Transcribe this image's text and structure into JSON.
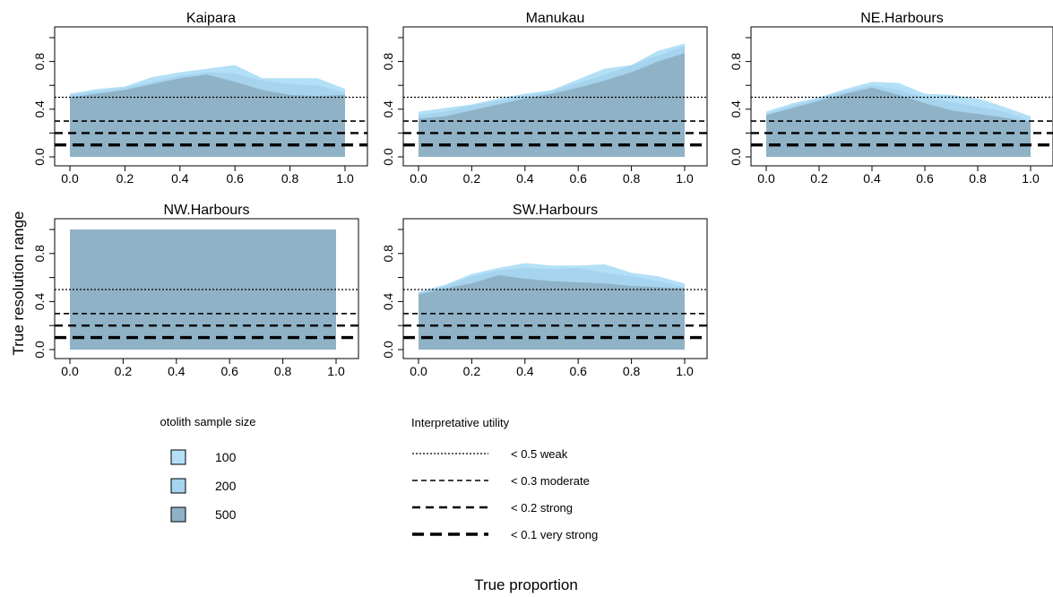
{
  "figure": {
    "y_axis_label": "True resolution range",
    "x_axis_label": "True proportion"
  },
  "chart_data": [
    {
      "type": "area",
      "title": "Kaipara",
      "x": [
        0,
        0.1,
        0.2,
        0.3,
        0.4,
        0.5,
        0.6,
        0.7,
        0.8,
        0.9,
        1.0
      ],
      "series": [
        {
          "name": "100",
          "values": [
            0.53,
            0.57,
            0.59,
            0.67,
            0.71,
            0.74,
            0.77,
            0.66,
            0.66,
            0.66,
            0.57
          ]
        },
        {
          "name": "200",
          "values": [
            0.52,
            0.55,
            0.58,
            0.63,
            0.68,
            0.71,
            0.7,
            0.64,
            0.61,
            0.6,
            0.54
          ]
        },
        {
          "name": "500",
          "values": [
            0.5,
            0.53,
            0.56,
            0.61,
            0.66,
            0.69,
            0.63,
            0.56,
            0.52,
            0.51,
            0.52
          ]
        }
      ],
      "xticks": [
        "0.0",
        "0.2",
        "0.4",
        "0.6",
        "0.8",
        "1.0"
      ],
      "yticks": [
        "0.0",
        "0.4",
        "0.8"
      ],
      "xlim": [
        0,
        1
      ],
      "ylim": [
        0,
        1
      ]
    },
    {
      "type": "area",
      "title": "Manukau",
      "x": [
        0,
        0.1,
        0.2,
        0.3,
        0.4,
        0.5,
        0.6,
        0.7,
        0.8,
        0.9,
        1.0
      ],
      "series": [
        {
          "name": "100",
          "values": [
            0.38,
            0.41,
            0.44,
            0.49,
            0.53,
            0.56,
            0.65,
            0.74,
            0.77,
            0.89,
            0.95
          ]
        },
        {
          "name": "200",
          "values": [
            0.35,
            0.38,
            0.43,
            0.47,
            0.51,
            0.55,
            0.62,
            0.69,
            0.77,
            0.85,
            0.93
          ]
        },
        {
          "name": "500",
          "values": [
            0.32,
            0.34,
            0.39,
            0.44,
            0.49,
            0.53,
            0.58,
            0.64,
            0.71,
            0.8,
            0.87
          ]
        }
      ],
      "xticks": [
        "0.0",
        "0.2",
        "0.4",
        "0.6",
        "0.8",
        "1.0"
      ],
      "yticks": [
        "0.0",
        "0.4",
        "0.8"
      ],
      "xlim": [
        0,
        1
      ],
      "ylim": [
        0,
        1
      ]
    },
    {
      "type": "area",
      "title": "NE.Harbours",
      "x": [
        0,
        0.1,
        0.2,
        0.3,
        0.4,
        0.5,
        0.6,
        0.7,
        0.8,
        0.9,
        1.0
      ],
      "series": [
        {
          "name": "100",
          "values": [
            0.38,
            0.45,
            0.5,
            0.57,
            0.63,
            0.62,
            0.53,
            0.52,
            0.49,
            0.42,
            0.34
          ]
        },
        {
          "name": "200",
          "values": [
            0.36,
            0.43,
            0.49,
            0.55,
            0.6,
            0.56,
            0.5,
            0.46,
            0.42,
            0.38,
            0.3
          ]
        },
        {
          "name": "500",
          "values": [
            0.35,
            0.41,
            0.47,
            0.53,
            0.58,
            0.52,
            0.45,
            0.39,
            0.36,
            0.33,
            0.29
          ]
        }
      ],
      "xticks": [
        "0.0",
        "0.2",
        "0.4",
        "0.6",
        "0.8",
        "1.0"
      ],
      "yticks": [
        "0.0",
        "0.4",
        "0.8"
      ],
      "xlim": [
        0,
        1
      ],
      "ylim": [
        0,
        1
      ]
    },
    {
      "type": "area",
      "title": "NW.Harbours",
      "x": [
        0,
        0.1,
        0.2,
        0.3,
        0.4,
        0.5,
        0.6,
        0.7,
        0.8,
        0.9,
        1.0
      ],
      "series": [
        {
          "name": "100",
          "values": [
            1.0,
            1.0,
            1.0,
            1.0,
            1.0,
            1.0,
            1.0,
            1.0,
            1.0,
            1.0,
            1.0
          ]
        },
        {
          "name": "200",
          "values": [
            1.0,
            1.0,
            1.0,
            1.0,
            1.0,
            1.0,
            1.0,
            1.0,
            1.0,
            1.0,
            1.0
          ]
        },
        {
          "name": "500",
          "values": [
            1.0,
            1.0,
            1.0,
            1.0,
            1.0,
            1.0,
            1.0,
            1.0,
            1.0,
            1.0,
            1.0
          ]
        }
      ],
      "xticks": [
        "0.0",
        "0.2",
        "0.4",
        "0.6",
        "0.8",
        "1.0"
      ],
      "yticks": [
        "0.0",
        "0.4",
        "0.8"
      ],
      "xlim": [
        0,
        1
      ],
      "ylim": [
        0,
        1
      ]
    },
    {
      "type": "area",
      "title": "SW.Harbours",
      "x": [
        0,
        0.1,
        0.2,
        0.3,
        0.4,
        0.5,
        0.6,
        0.7,
        0.8,
        0.9,
        1.0
      ],
      "series": [
        {
          "name": "100",
          "values": [
            0.48,
            0.54,
            0.63,
            0.68,
            0.72,
            0.7,
            0.7,
            0.71,
            0.64,
            0.61,
            0.55
          ]
        },
        {
          "name": "200",
          "values": [
            0.47,
            0.53,
            0.61,
            0.66,
            0.68,
            0.67,
            0.68,
            0.64,
            0.61,
            0.57,
            0.52
          ]
        },
        {
          "name": "500",
          "values": [
            0.46,
            0.51,
            0.55,
            0.62,
            0.59,
            0.57,
            0.56,
            0.55,
            0.53,
            0.52,
            0.51
          ]
        }
      ],
      "xticks": [
        "0.0",
        "0.2",
        "0.4",
        "0.6",
        "0.8",
        "1.0"
      ],
      "yticks": [
        "0.0",
        "0.4",
        "0.8"
      ],
      "xlim": [
        0,
        1
      ],
      "ylim": [
        0,
        1
      ]
    }
  ],
  "thresholds": [
    {
      "value": 0.5,
      "label": "< 0.5 weak"
    },
    {
      "value": 0.3,
      "label": "< 0.3 moderate"
    },
    {
      "value": 0.2,
      "label": "< 0.2 strong"
    },
    {
      "value": 0.1,
      "label": "< 0.1 very strong"
    }
  ],
  "legend_sample": {
    "title": "otolith sample size",
    "items": [
      {
        "label": "100",
        "color": "#b3e0f7"
      },
      {
        "label": "200",
        "color": "#a6d3ee"
      },
      {
        "label": "500",
        "color": "#8fb2c6"
      }
    ]
  },
  "legend_utility": {
    "title": "Interpretative utility"
  },
  "colors": {
    "series": [
      "#b3e0f7",
      "#a6d3ee",
      "#8fb2c6"
    ]
  }
}
